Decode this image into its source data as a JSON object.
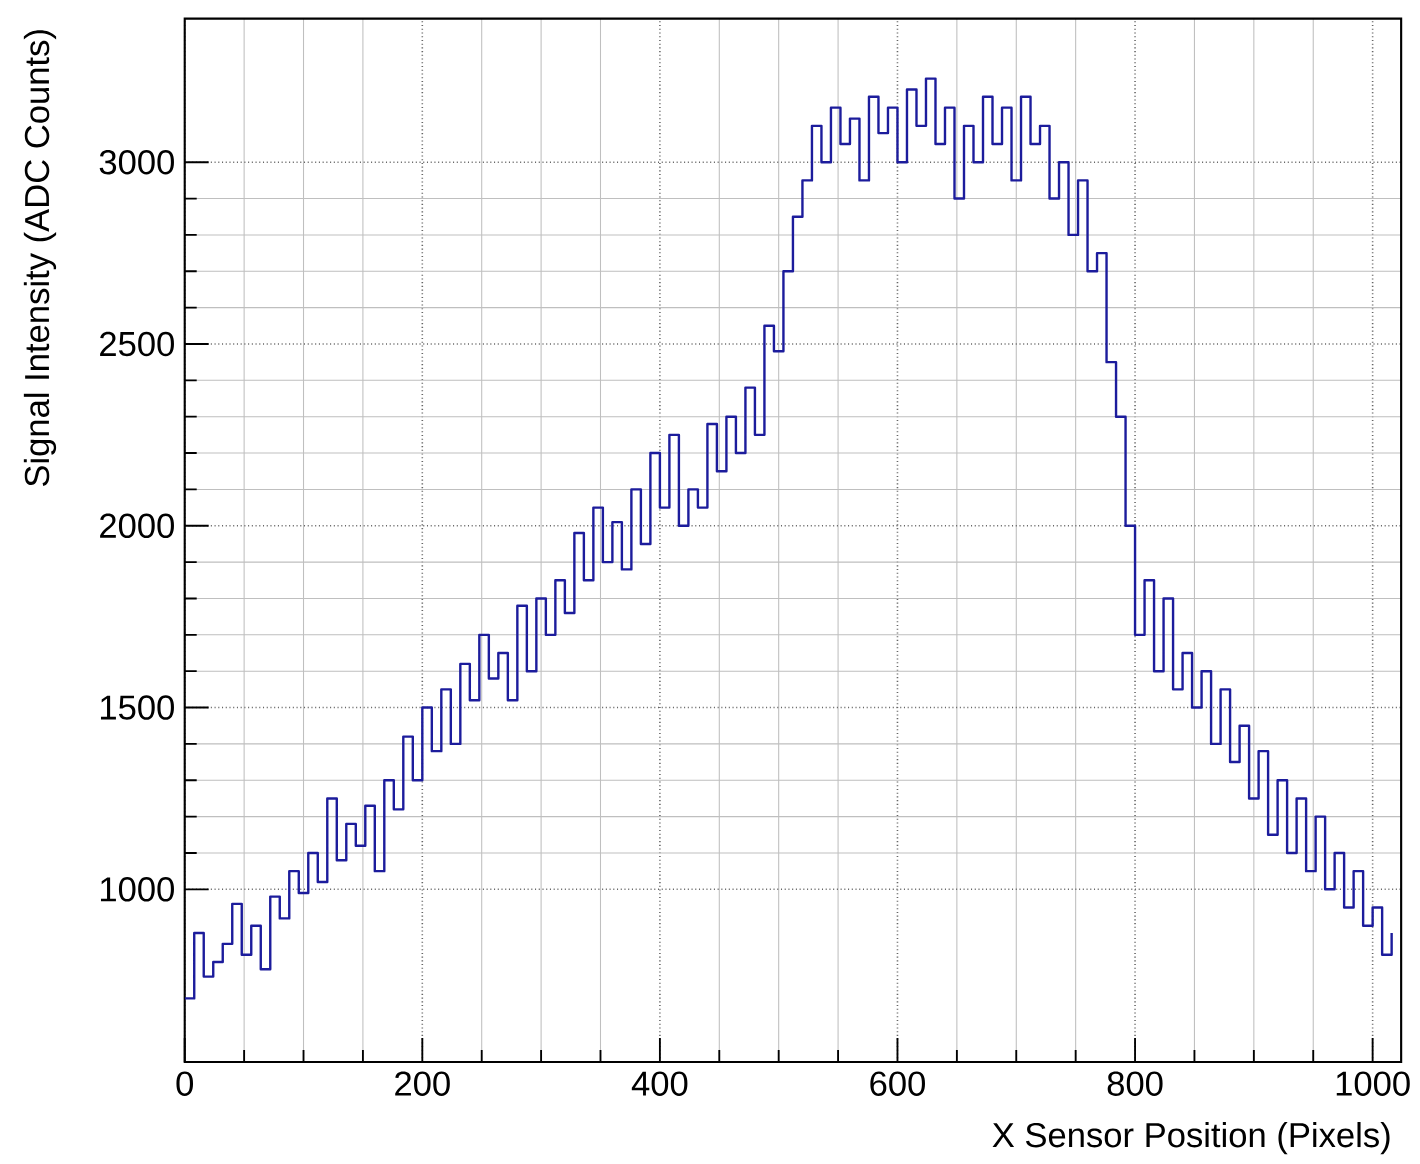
{
  "chart_data": {
    "type": "step",
    "xlabel": "X Sensor Position (Pixels)",
    "ylabel": "Signal Intensity (ADC Counts)",
    "xlim": [
      0,
      1024
    ],
    "ylim": [
      525,
      3395
    ],
    "xticks": [
      0,
      200,
      400,
      600,
      800,
      1000
    ],
    "yticks": [
      1000,
      1500,
      2000,
      2500,
      3000
    ],
    "grid": true,
    "x": [
      0,
      8,
      16,
      24,
      32,
      40,
      48,
      56,
      64,
      72,
      80,
      88,
      96,
      104,
      112,
      120,
      128,
      136,
      144,
      152,
      160,
      168,
      176,
      184,
      192,
      200,
      208,
      216,
      224,
      232,
      240,
      248,
      256,
      264,
      272,
      280,
      288,
      296,
      304,
      312,
      320,
      328,
      336,
      344,
      352,
      360,
      368,
      376,
      384,
      392,
      400,
      408,
      416,
      424,
      432,
      440,
      448,
      456,
      464,
      472,
      480,
      488,
      496,
      504,
      512,
      520,
      528,
      536,
      544,
      552,
      560,
      568,
      576,
      584,
      592,
      600,
      608,
      616,
      624,
      632,
      640,
      648,
      656,
      664,
      672,
      680,
      688,
      696,
      704,
      712,
      720,
      728,
      736,
      744,
      752,
      760,
      768,
      776,
      784,
      792,
      800,
      808,
      816,
      824,
      832,
      840,
      848,
      856,
      864,
      872,
      880,
      888,
      896,
      904,
      912,
      920,
      928,
      936,
      944,
      952,
      960,
      968,
      976,
      984,
      992,
      1000,
      1008,
      1016
    ],
    "series": [
      {
        "color": "#1c1c9c",
        "values": [
          700,
          880,
          760,
          800,
          850,
          960,
          820,
          900,
          780,
          980,
          920,
          1050,
          990,
          1100,
          1020,
          1250,
          1080,
          1180,
          1120,
          1230,
          1050,
          1300,
          1220,
          1420,
          1300,
          1500,
          1380,
          1550,
          1400,
          1620,
          1520,
          1700,
          1580,
          1650,
          1520,
          1780,
          1600,
          1800,
          1700,
          1850,
          1760,
          1980,
          1850,
          2050,
          1900,
          2010,
          1880,
          2100,
          1950,
          2200,
          2050,
          2250,
          2000,
          2100,
          2050,
          2280,
          2150,
          2300,
          2200,
          2380,
          2250,
          2550,
          2480,
          2700,
          2850,
          2950,
          3100,
          3000,
          3150,
          3050,
          3120,
          2950,
          3180,
          3080,
          3150,
          3000,
          3200,
          3100,
          3230,
          3050,
          3150,
          2900,
          3100,
          3000,
          3180,
          3050,
          3150,
          2950,
          3180,
          3050,
          3100,
          2900,
          3000,
          2800,
          2950,
          2700,
          2750,
          2450,
          2300,
          2000,
          1700,
          1850,
          1600,
          1800,
          1550,
          1650,
          1500,
          1600,
          1400,
          1550,
          1350,
          1450,
          1250,
          1380,
          1150,
          1300,
          1100,
          1250,
          1050,
          1200,
          1000,
          1100,
          950,
          1050,
          900,
          950,
          820,
          880
        ]
      }
    ]
  }
}
